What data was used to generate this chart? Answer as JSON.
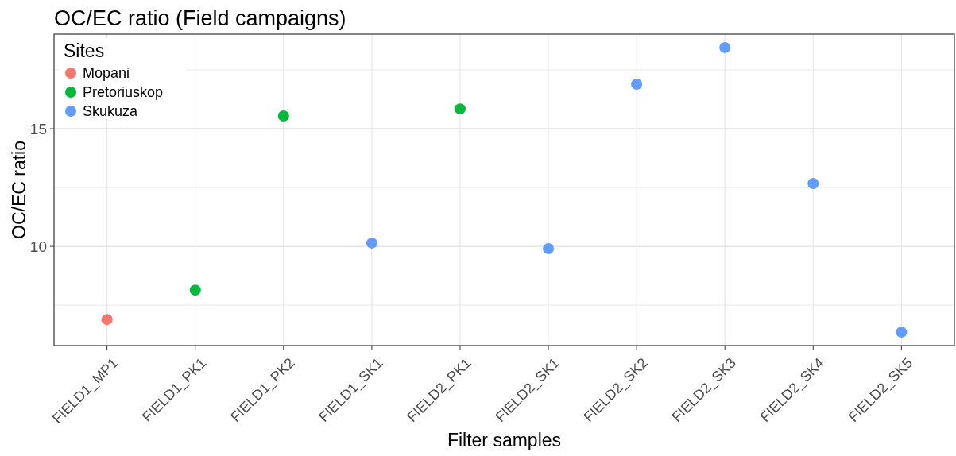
{
  "chart_data": {
    "type": "scatter",
    "title": "OC/EC ratio (Field campaigns)",
    "xlabel": "Filter samples",
    "ylabel": "OC/EC ratio",
    "legend_title": "Sites",
    "legend": "top left",
    "grid": true,
    "marker": "circle",
    "categories": [
      "FIELD1_MP1",
      "FIELD1_PK1",
      "FIELD1_PK2",
      "FIELD1_SK1",
      "FIELD2_PK1",
      "FIELD2_SK1",
      "FIELD2_SK2",
      "FIELD2_SK3",
      "FIELD2_SK4",
      "FIELD2_SK5"
    ],
    "ylim": [
      5.78,
      19.02
    ],
    "yticks": [
      {
        "value": 7.5,
        "label": null
      },
      10,
      {
        "value": 12.5,
        "label": null
      },
      15,
      {
        "value": 17.5,
        "label": null
      }
    ],
    "series": [
      {
        "name": "Mopani",
        "color": "#f8766d",
        "values": [
          6.89,
          null,
          null,
          null,
          null,
          null,
          null,
          null,
          null,
          null
        ]
      },
      {
        "name": "Pretoriuskop",
        "color": "#00ba38",
        "values": [
          null,
          8.14,
          15.54,
          null,
          15.84,
          null,
          null,
          null,
          null,
          null
        ]
      },
      {
        "name": "Skukuza",
        "color": "#619cff",
        "values": [
          null,
          null,
          null,
          10.14,
          null,
          9.9,
          16.89,
          18.45,
          12.67,
          6.35
        ]
      }
    ]
  }
}
